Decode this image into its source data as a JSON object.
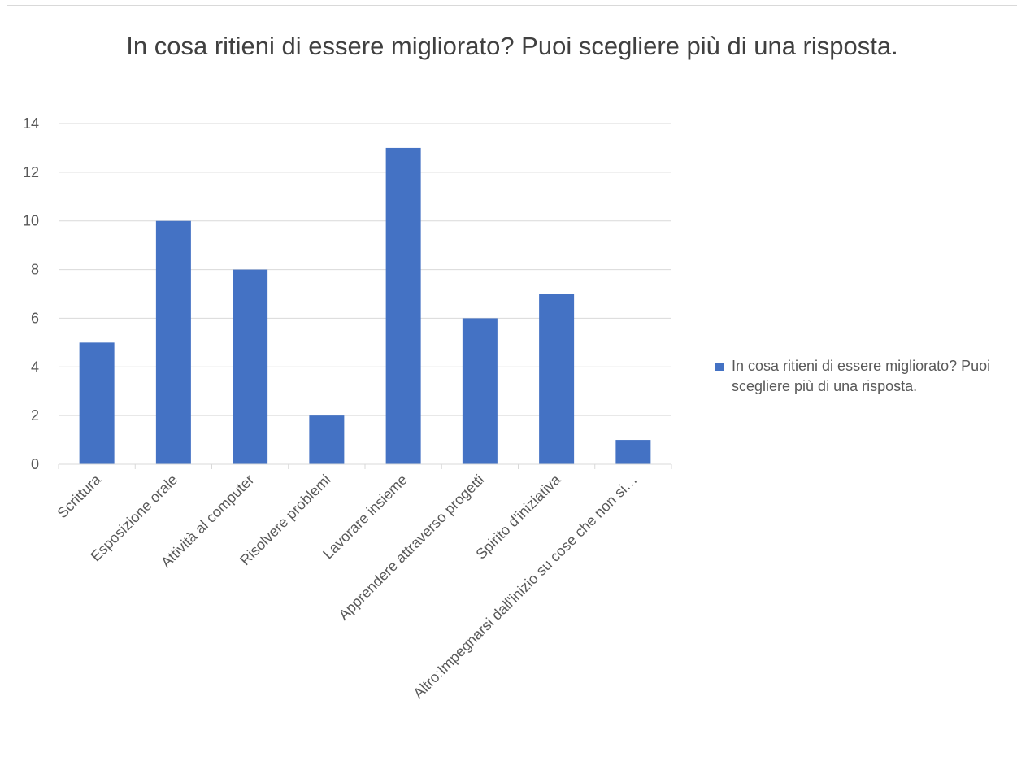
{
  "chart_data": {
    "type": "bar",
    "title": "In cosa ritieni di essere migliorato? Puoi scegliere più di una risposta.",
    "xlabel": "",
    "ylabel": "",
    "ylim": [
      0,
      14
    ],
    "yticks": [
      0,
      2,
      4,
      6,
      8,
      10,
      12,
      14
    ],
    "grid": true,
    "legend_position": "right",
    "categories": [
      "Scrittura",
      "Esposizione orale",
      "Attività al computer",
      "Risolvere problemi",
      "Lavorare insieme",
      "Apprendere attraverso progetti",
      "Spirito d'iniziativa",
      "Altro:Impegnarsi dall'inizio su cose che non si…"
    ],
    "series": [
      {
        "name": "In cosa ritieni di essere migliorato? Puoi scegliere più di una risposta.",
        "values": [
          5,
          10,
          8,
          2,
          13,
          6,
          7,
          1
        ],
        "color": "#4472c4"
      }
    ]
  }
}
